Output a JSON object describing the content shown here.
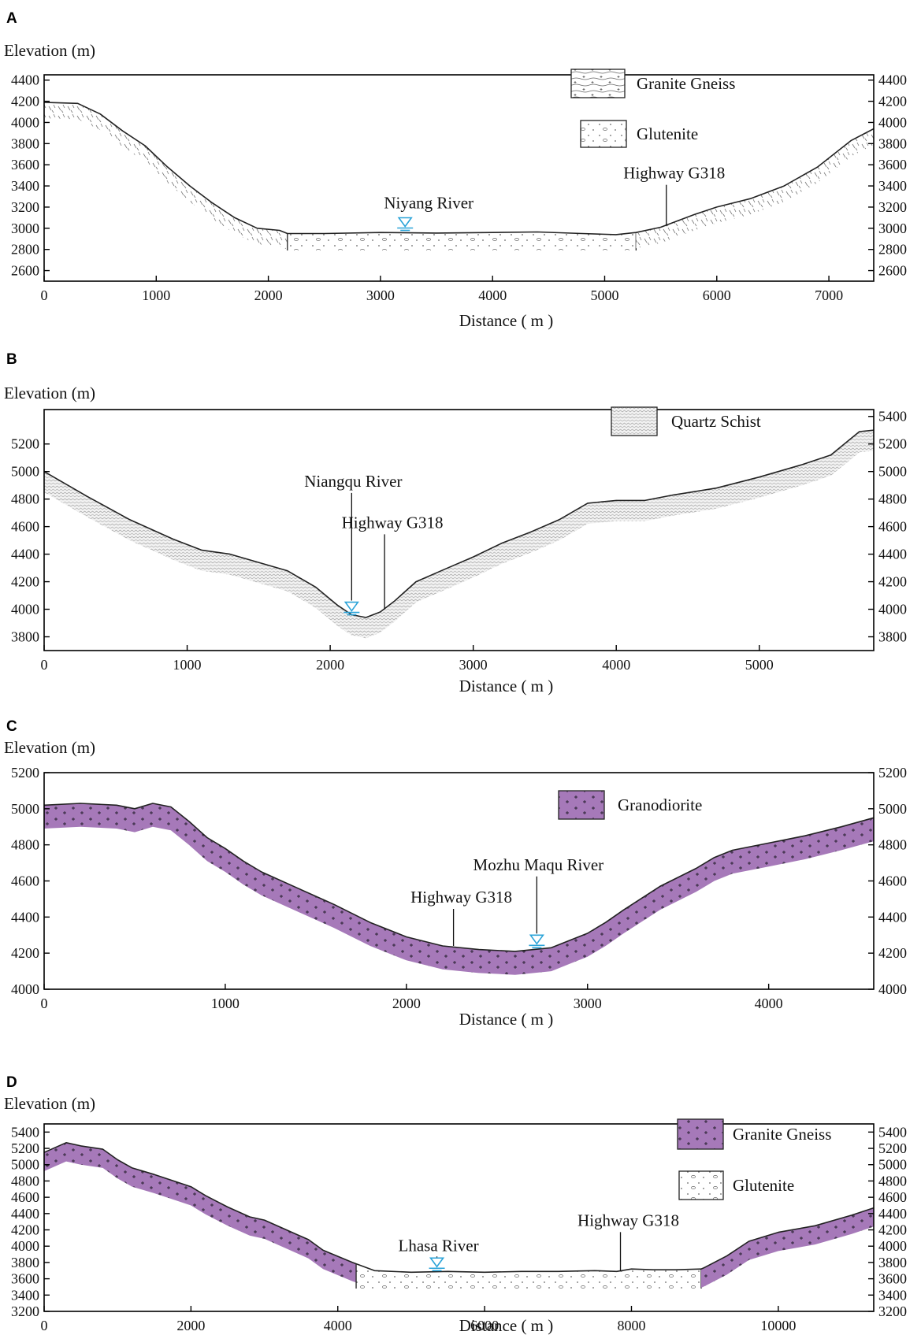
{
  "colors": {
    "granodiorite": "#a679b9",
    "granite_purple": "#a679b9",
    "water_symbol": "#2aa3d8",
    "schist_fill": "#eeeeee"
  },
  "chart_data": [
    {
      "panel": "A",
      "type": "area",
      "xlabel": "Distance ( m )",
      "ylabel": "Elevation (m)",
      "xlim": [
        0,
        7400
      ],
      "ylim": [
        2500,
        4450
      ],
      "xticks": [
        0,
        1000,
        2000,
        3000,
        4000,
        5000,
        6000,
        7000
      ],
      "yticks": [
        2600,
        2800,
        3000,
        3200,
        3400,
        3600,
        3800,
        4000,
        4200,
        4400
      ],
      "right_axis_ticks": true,
      "surface": [
        [
          0,
          4190
        ],
        [
          300,
          4180
        ],
        [
          500,
          4080
        ],
        [
          700,
          3920
        ],
        [
          900,
          3780
        ],
        [
          1100,
          3580
        ],
        [
          1300,
          3400
        ],
        [
          1500,
          3240
        ],
        [
          1700,
          3100
        ],
        [
          1900,
          3000
        ],
        [
          2100,
          2980
        ],
        [
          2170,
          2950
        ],
        [
          2500,
          2950
        ],
        [
          3000,
          2960
        ],
        [
          3500,
          2955
        ],
        [
          4000,
          2960
        ],
        [
          4400,
          2965
        ],
        [
          4800,
          2950
        ],
        [
          5100,
          2940
        ],
        [
          5280,
          2960
        ],
        [
          5500,
          3010
        ],
        [
          5800,
          3130
        ],
        [
          6000,
          3200
        ],
        [
          6300,
          3280
        ],
        [
          6600,
          3400
        ],
        [
          6900,
          3580
        ],
        [
          7200,
          3830
        ],
        [
          7400,
          3940
        ]
      ],
      "layers": [
        {
          "unit": "Granite Gneiss",
          "from_x": 0,
          "to_x": 2170,
          "thickness": 150
        },
        {
          "unit": "Glutenite",
          "from_x": 2170,
          "to_x": 5280,
          "bottom": 2790
        },
        {
          "unit": "Granite Gneiss",
          "from_x": 5280,
          "to_x": 7400,
          "thickness": 150
        }
      ],
      "legend": [
        {
          "label": "Granite Gneiss",
          "pattern": "gneiss-line"
        },
        {
          "label": "Glutenite",
          "pattern": "glutenite"
        }
      ],
      "annotations": [
        {
          "label": "Niyang River",
          "x": 3220,
          "y": 2980,
          "kind": "water"
        },
        {
          "label": "Highway G318",
          "x": 5550,
          "y": 3020,
          "kind": "pointer",
          "label_y": 3470
        }
      ]
    },
    {
      "panel": "B",
      "type": "area",
      "xlabel": "Distance ( m )",
      "ylabel": "Elevation (m)",
      "xlim": [
        0,
        5800
      ],
      "ylim": [
        3700,
        5450
      ],
      "xticks": [
        0,
        1000,
        2000,
        3000,
        4000,
        5000
      ],
      "yticks": [
        3800,
        4000,
        4200,
        4400,
        4600,
        4800,
        5000,
        5200
      ],
      "right_axis_ticks": true,
      "right_yticks": [
        3800,
        4000,
        4200,
        4400,
        4600,
        4800,
        5000,
        5200,
        5400
      ],
      "surface": [
        [
          0,
          5000
        ],
        [
          300,
          4820
        ],
        [
          600,
          4650
        ],
        [
          900,
          4510
        ],
        [
          1100,
          4430
        ],
        [
          1300,
          4400
        ],
        [
          1500,
          4340
        ],
        [
          1700,
          4280
        ],
        [
          1900,
          4160
        ],
        [
          2050,
          4030
        ],
        [
          2150,
          3960
        ],
        [
          2250,
          3940
        ],
        [
          2350,
          3980
        ],
        [
          2450,
          4060
        ],
        [
          2600,
          4200
        ],
        [
          2800,
          4290
        ],
        [
          3000,
          4380
        ],
        [
          3200,
          4480
        ],
        [
          3400,
          4560
        ],
        [
          3600,
          4650
        ],
        [
          3800,
          4770
        ],
        [
          4000,
          4790
        ],
        [
          4200,
          4790
        ],
        [
          4400,
          4830
        ],
        [
          4700,
          4880
        ],
        [
          5000,
          4960
        ],
        [
          5300,
          5050
        ],
        [
          5500,
          5120
        ],
        [
          5700,
          5290
        ],
        [
          5800,
          5300
        ]
      ],
      "layers": [
        {
          "unit": "Quartz Schist",
          "from_x": 0,
          "to_x": 5800,
          "thickness": 150
        }
      ],
      "legend": [
        {
          "label": "Quartz Schist",
          "pattern": "schist"
        }
      ],
      "annotations": [
        {
          "label": "Niangqu River",
          "x": 2150,
          "y": 3960,
          "kind": "water",
          "label_y": 4890
        },
        {
          "label": "Highway G318",
          "x": 2380,
          "y": 4000,
          "kind": "pointer",
          "label_y": 4590
        }
      ]
    },
    {
      "panel": "C",
      "type": "area",
      "xlabel": "Distance ( m )",
      "ylabel": "Elevation (m)",
      "xlim": [
        0,
        4580
      ],
      "ylim": [
        4000,
        5200
      ],
      "xticks": [
        0,
        1000,
        2000,
        3000,
        4000
      ],
      "yticks": [
        4000,
        4200,
        4400,
        4600,
        4800,
        5000,
        5200
      ],
      "right_axis_ticks": true,
      "surface": [
        [
          0,
          5020
        ],
        [
          200,
          5030
        ],
        [
          400,
          5020
        ],
        [
          500,
          5000
        ],
        [
          600,
          5030
        ],
        [
          700,
          5010
        ],
        [
          800,
          4930
        ],
        [
          900,
          4840
        ],
        [
          1000,
          4780
        ],
        [
          1100,
          4710
        ],
        [
          1200,
          4650
        ],
        [
          1400,
          4560
        ],
        [
          1600,
          4470
        ],
        [
          1800,
          4370
        ],
        [
          2000,
          4290
        ],
        [
          2200,
          4240
        ],
        [
          2400,
          4220
        ],
        [
          2600,
          4210
        ],
        [
          2800,
          4230
        ],
        [
          2900,
          4270
        ],
        [
          3000,
          4310
        ],
        [
          3100,
          4370
        ],
        [
          3200,
          4440
        ],
        [
          3400,
          4570
        ],
        [
          3600,
          4670
        ],
        [
          3700,
          4730
        ],
        [
          3800,
          4770
        ],
        [
          4000,
          4810
        ],
        [
          4200,
          4850
        ],
        [
          4400,
          4900
        ],
        [
          4580,
          4950
        ]
      ],
      "layers": [
        {
          "unit": "Granodiorite",
          "from_x": 0,
          "to_x": 4580,
          "thickness": 130
        }
      ],
      "legend": [
        {
          "label": "Granodiorite",
          "pattern": "granite-purple"
        }
      ],
      "annotations": [
        {
          "label": "Highway G318",
          "x": 2260,
          "y": 4240,
          "kind": "pointer",
          "label_y": 4480
        },
        {
          "label": "Mozhu Maqu River",
          "x": 2720,
          "y": 4230,
          "kind": "water",
          "label_y": 4660
        }
      ]
    },
    {
      "panel": "D",
      "type": "area",
      "xlabel": "Distance ( m )",
      "ylabel": "Elevation (m)",
      "xlim": [
        0,
        11300
      ],
      "ylim": [
        3200,
        5500
      ],
      "xticks": [
        0,
        2000,
        4000,
        6000,
        8000,
        10000
      ],
      "yticks": [
        3200,
        3400,
        3600,
        3800,
        4000,
        4200,
        4400,
        4600,
        4800,
        5000,
        5200,
        5400
      ],
      "right_axis_ticks": true,
      "surface": [
        [
          0,
          5150
        ],
        [
          300,
          5270
        ],
        [
          500,
          5230
        ],
        [
          800,
          5190
        ],
        [
          1000,
          5060
        ],
        [
          1200,
          4960
        ],
        [
          1500,
          4880
        ],
        [
          1800,
          4790
        ],
        [
          2000,
          4730
        ],
        [
          2200,
          4620
        ],
        [
          2500,
          4480
        ],
        [
          2800,
          4360
        ],
        [
          3000,
          4320
        ],
        [
          3300,
          4200
        ],
        [
          3600,
          4080
        ],
        [
          3800,
          3950
        ],
        [
          4200,
          3800
        ],
        [
          4500,
          3700
        ],
        [
          5000,
          3680
        ],
        [
          5500,
          3690
        ],
        [
          6000,
          3680
        ],
        [
          6500,
          3690
        ],
        [
          7000,
          3690
        ],
        [
          7500,
          3700
        ],
        [
          7800,
          3690
        ],
        [
          8000,
          3720
        ],
        [
          8300,
          3710
        ],
        [
          8600,
          3710
        ],
        [
          8950,
          3720
        ],
        [
          9000,
          3740
        ],
        [
          9300,
          3880
        ],
        [
          9600,
          4060
        ],
        [
          10000,
          4170
        ],
        [
          10500,
          4250
        ],
        [
          11000,
          4380
        ],
        [
          11300,
          4470
        ]
      ],
      "layers": [
        {
          "unit": "Granite Gneiss",
          "from_x": 0,
          "to_x": 4250,
          "thickness": 230
        },
        {
          "unit": "Glutenite",
          "from_x": 4250,
          "to_x": 8950,
          "bottom": 3480
        },
        {
          "unit": "Granite Gneiss",
          "from_x": 8950,
          "to_x": 11300,
          "thickness": 230
        }
      ],
      "legend": [
        {
          "label": "Granite Gneiss",
          "pattern": "granite-purple"
        },
        {
          "label": "Glutenite",
          "pattern": "glutenite"
        }
      ],
      "annotations": [
        {
          "label": "Lhasa River",
          "x": 5350,
          "y": 3700,
          "kind": "water",
          "label_y": 3940
        },
        {
          "label": "Highway G318",
          "x": 7850,
          "y": 3690,
          "kind": "pointer",
          "label_y": 4250
        }
      ]
    }
  ]
}
